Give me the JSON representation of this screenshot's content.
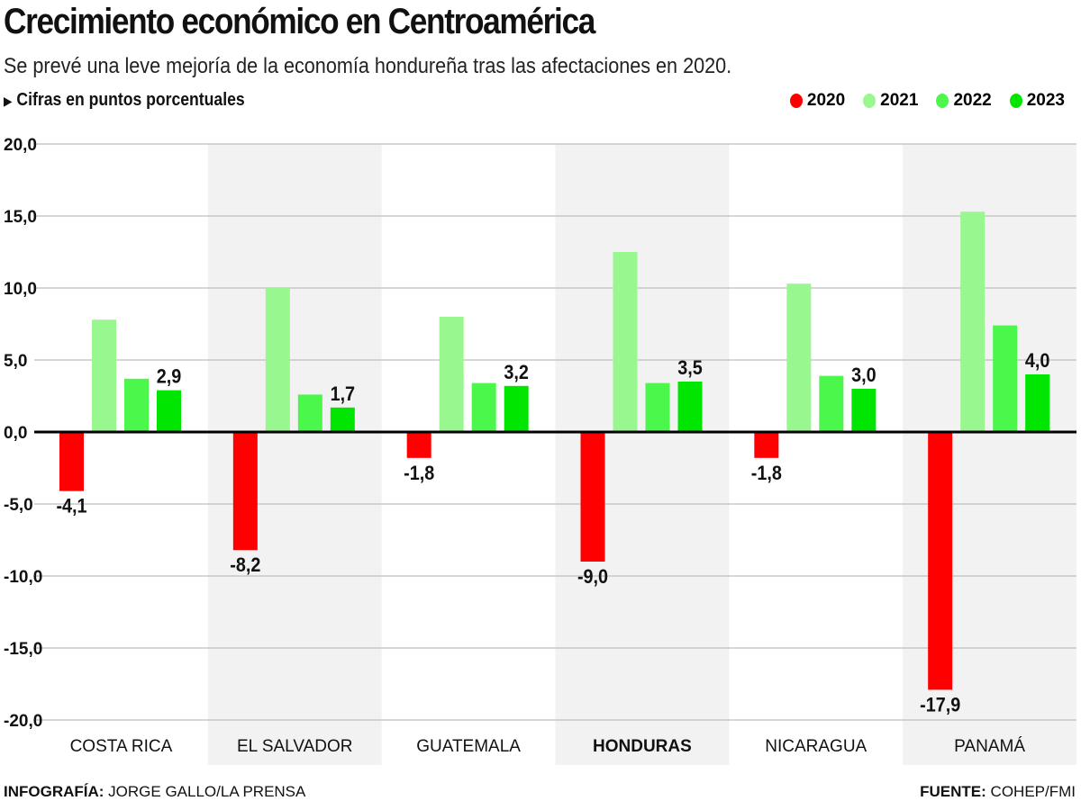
{
  "header": {
    "title": "Crecimiento económico en Centroamérica",
    "subtitle": "Se prevé una leve mejoría de la economía hondureña tras las afectaciones en 2020.",
    "units_marker": "▶",
    "units": "Cifras en puntos porcentuales"
  },
  "footer": {
    "credit_label": "INFOGRAFÍA:",
    "credit": "JORGE GALLO/LA PRENSA",
    "source_label": "FUENTE:",
    "source": "COHEP/FMI"
  },
  "chart_data": {
    "type": "bar",
    "categories": [
      "COSTA RICA",
      "EL SALVADOR",
      "GUATEMALA",
      "HONDURAS",
      "NICARAGUA",
      "PANAMÁ"
    ],
    "highlight_category": "HONDURAS",
    "series": [
      {
        "name": "2020",
        "color": "#ff0000",
        "values": [
          -4.1,
          -8.2,
          -1.8,
          -9.0,
          -1.8,
          -17.9
        ],
        "labels": [
          "-4,1",
          "-8,2",
          "-1,8",
          "-9,0",
          "-1,8",
          "-17,9"
        ]
      },
      {
        "name": "2021",
        "color": "#99f78f",
        "values": [
          7.8,
          10.0,
          8.0,
          12.5,
          10.3,
          15.3
        ]
      },
      {
        "name": "2022",
        "color": "#4cf74c",
        "values": [
          3.7,
          2.6,
          3.4,
          3.4,
          3.9,
          7.4
        ]
      },
      {
        "name": "2023",
        "color": "#00e600",
        "values": [
          2.9,
          1.7,
          3.2,
          3.5,
          3.0,
          4.0
        ],
        "labels": [
          "2,9",
          "1,7",
          "3,2",
          "3,5",
          "3,0",
          "4,0"
        ]
      }
    ],
    "ylim": [
      -20,
      20
    ],
    "yticks": [
      20,
      15,
      10,
      5,
      0,
      -5,
      -10,
      -15,
      -20
    ],
    "ytick_labels": [
      "20,0",
      "15,0",
      "10,0",
      "5,0",
      "0,0",
      "-5,0",
      "-10,0",
      "-15,0",
      "-20,0"
    ],
    "grid": true,
    "legend_position": "top-right",
    "alternating_band_color": "#f2f2f2"
  }
}
